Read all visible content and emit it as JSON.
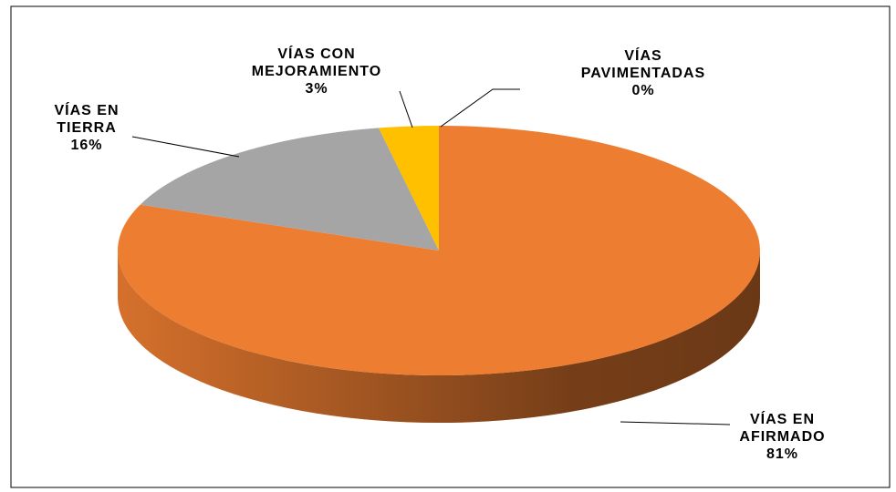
{
  "chart_data": {
    "type": "pie",
    "categories": [
      "VÍAS PAVIMENTADAS",
      "VÍAS EN AFIRMADO",
      "VÍAS EN TIERRA",
      "VÍAS CON MEJORAMIENTO"
    ],
    "values": [
      0,
      81,
      16,
      3
    ],
    "value_labels": [
      "0%",
      "81%",
      "16%",
      "3%"
    ],
    "colors": [
      "#5B9BD5",
      "#ED7D31",
      "#A5A5A5",
      "#FFC000"
    ]
  }
}
